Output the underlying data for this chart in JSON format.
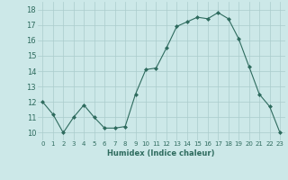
{
  "x": [
    0,
    1,
    2,
    3,
    4,
    5,
    6,
    7,
    8,
    9,
    10,
    11,
    12,
    13,
    14,
    15,
    16,
    17,
    18,
    19,
    20,
    21,
    22,
    23
  ],
  "y": [
    12.0,
    11.2,
    10.0,
    11.0,
    11.8,
    11.0,
    10.3,
    10.3,
    10.4,
    12.5,
    14.1,
    14.2,
    15.5,
    16.9,
    17.2,
    17.5,
    17.4,
    17.8,
    17.4,
    16.1,
    14.3,
    12.5,
    11.7,
    10.0
  ],
  "xlabel": "Humidex (Indice chaleur)",
  "ylim": [
    9.5,
    18.5
  ],
  "xlim": [
    -0.5,
    23.5
  ],
  "yticks": [
    10,
    11,
    12,
    13,
    14,
    15,
    16,
    17,
    18
  ],
  "xticks": [
    0,
    1,
    2,
    3,
    4,
    5,
    6,
    7,
    8,
    9,
    10,
    11,
    12,
    13,
    14,
    15,
    16,
    17,
    18,
    19,
    20,
    21,
    22,
    23
  ],
  "line_color": "#2e6b5e",
  "marker_color": "#2e6b5e",
  "bg_color": "#cce8e8",
  "grid_color": "#aacccc",
  "tick_color": "#2e6b5e",
  "xlabel_fontsize": 6.0,
  "ytick_fontsize": 6.0,
  "xtick_fontsize": 5.0
}
